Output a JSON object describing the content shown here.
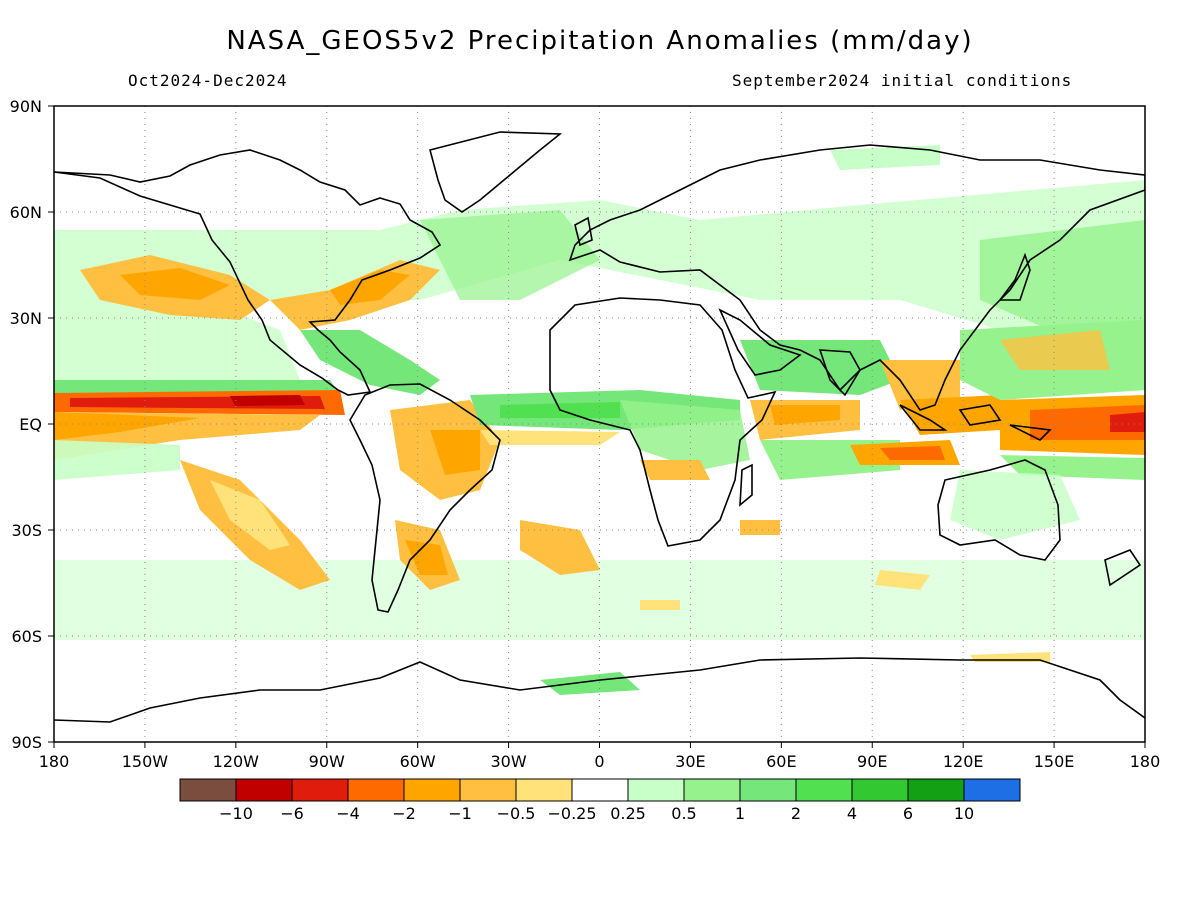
{
  "title": "NASA_GEOS5v2 Precipitation Anomalies (mm/day)",
  "period": "Oct2024-Dec2024",
  "initial_conditions": "September2024 initial conditions",
  "lat_labels": [
    "90N",
    "60N",
    "30N",
    "EQ",
    "30S",
    "60S",
    "90S"
  ],
  "lon_labels": [
    "180",
    "150W",
    "120W",
    "90W",
    "60W",
    "30W",
    "0",
    "30E",
    "60E",
    "90E",
    "120E",
    "150E",
    "180"
  ],
  "colorbar": {
    "colors": [
      "#7b4d3f",
      "#c00000",
      "#e01c0c",
      "#ff6a00",
      "#ffa500",
      "#ffbf40",
      "#ffe27a",
      "#ffffff",
      "#c8ffc8",
      "#96f28c",
      "#74e67a",
      "#50e050",
      "#32c832",
      "#14a014",
      "#1e6ee6"
    ],
    "labels": [
      "-10",
      "-6",
      "-4",
      "-2",
      "-1",
      "-0.5",
      "-0.25",
      "0.25",
      "0.5",
      "1",
      "2",
      "4",
      "6",
      "10"
    ]
  }
}
